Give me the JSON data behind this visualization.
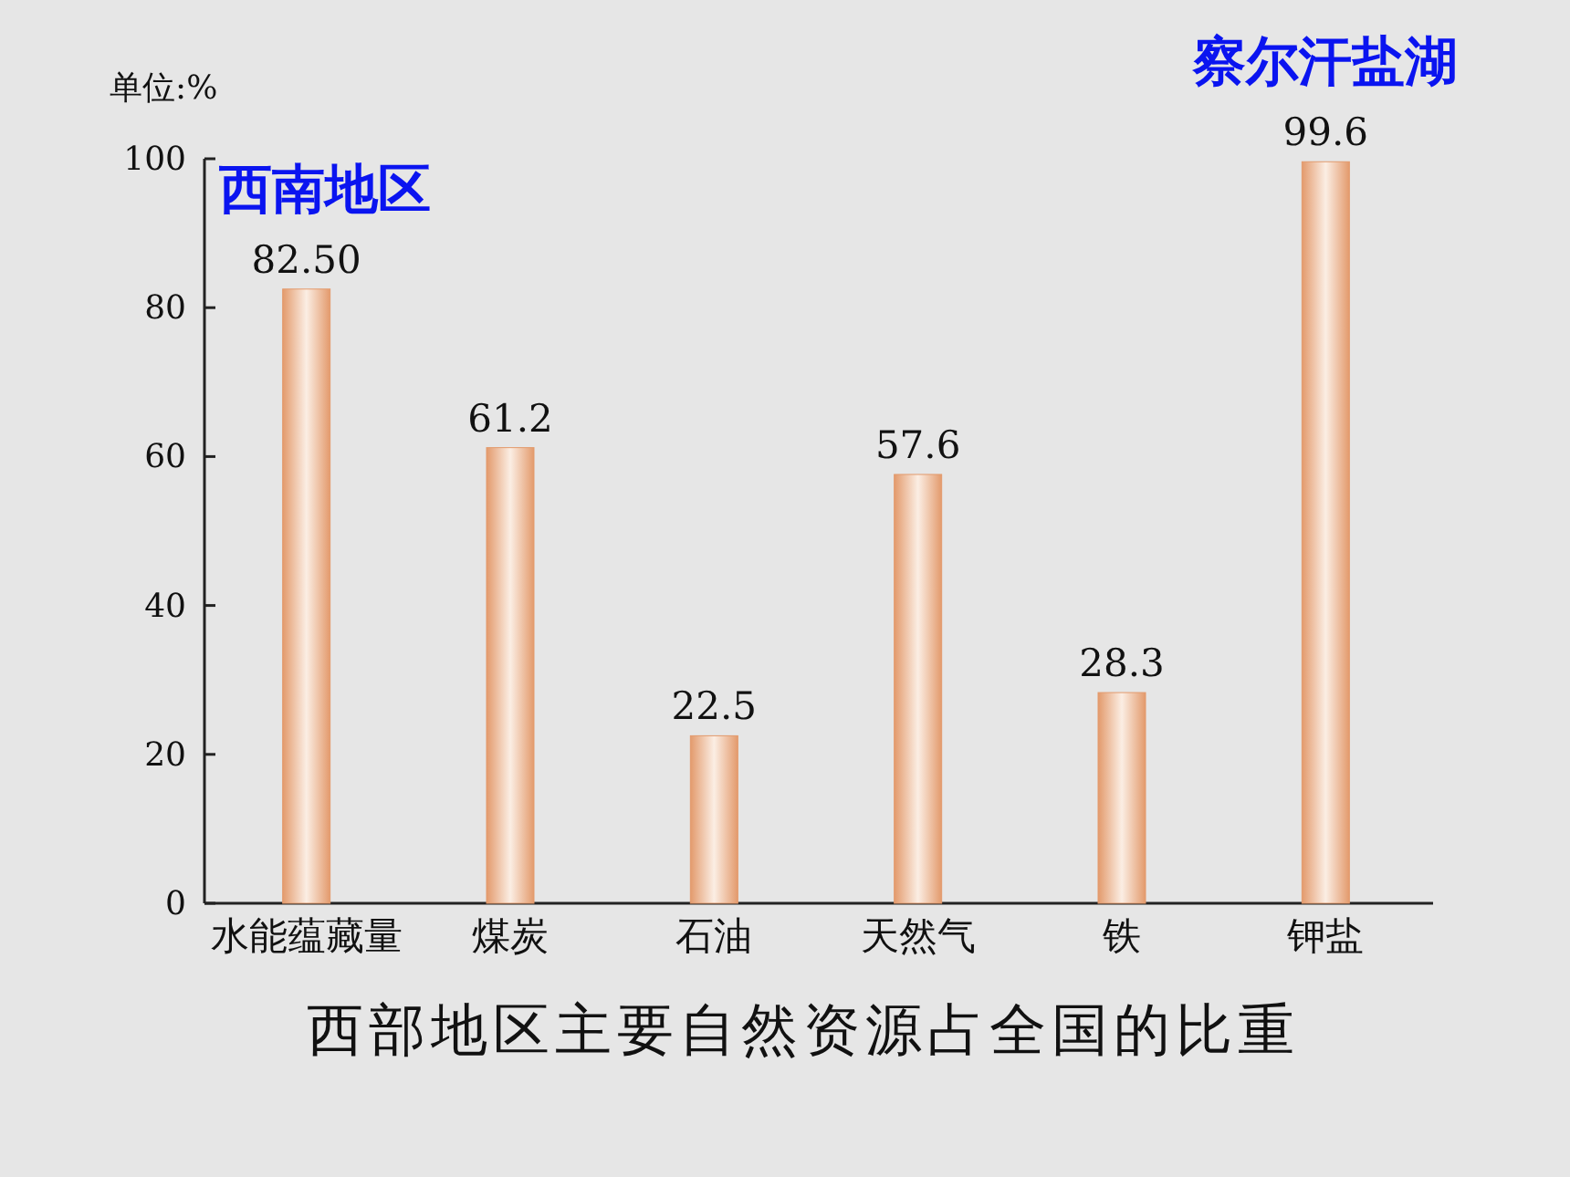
{
  "chart_data": {
    "type": "bar",
    "title": "西部地区主要自然资源占全国的比重",
    "ylabel": "单位:%",
    "categories": [
      "水能蕴藏量",
      "煤炭",
      "石油",
      "天然气",
      "铁",
      "钾盐"
    ],
    "values": [
      82.5,
      61.2,
      22.5,
      57.6,
      28.3,
      99.6
    ],
    "value_labels": [
      "82.50",
      "61.2",
      "22.5",
      "57.6",
      "28.3",
      "99.6"
    ],
    "color": "#e39a6c",
    "ylim": [
      0,
      100
    ],
    "yticks": [
      0,
      20,
      40,
      60,
      80,
      100
    ],
    "grid": false,
    "annotations": [
      {
        "text": "西南地区",
        "x": "水能蕴藏量",
        "y": 82.5
      },
      {
        "text": "察尔汗盐湖",
        "x": "钾盐",
        "y": 99.6
      }
    ]
  }
}
